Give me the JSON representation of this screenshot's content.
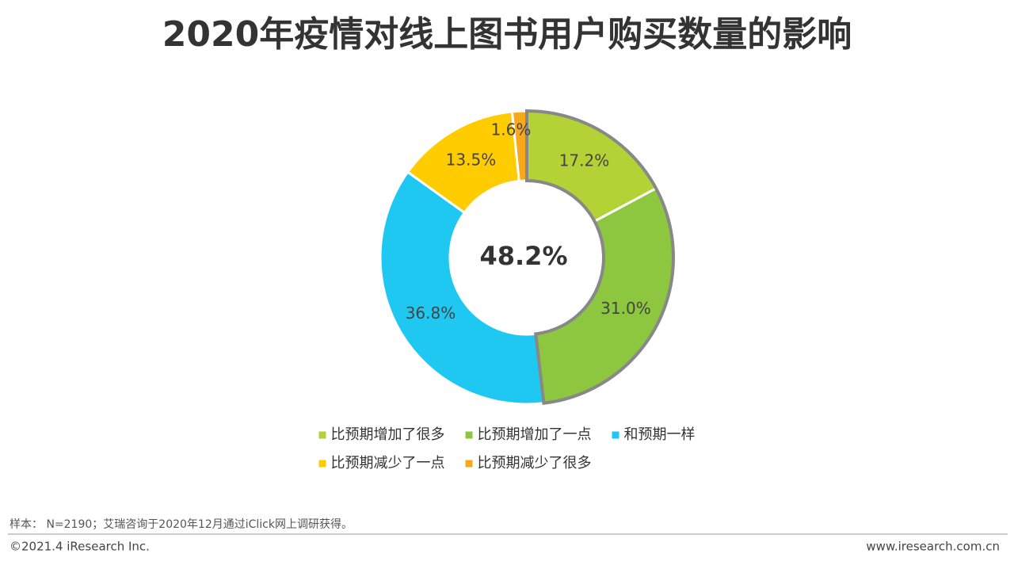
{
  "chart_data": {
    "type": "pie",
    "title": "2020年疫情对线上图书用户购买数量的影响",
    "categories": [
      "比预期增加了很多",
      "比预期增加了一点",
      "和预期一样",
      "比预期减少了一点",
      "比预期减少了很多"
    ],
    "values": [
      17.2,
      31.0,
      36.8,
      13.5,
      1.6
    ],
    "value_labels": [
      "17.2%",
      "31.0%",
      "36.8%",
      "13.5%",
      "1.6%"
    ],
    "colors": [
      "#b2d235",
      "#8dc63f",
      "#1ec8f0",
      "#ffcc00",
      "#f7a81b"
    ],
    "center_label": "48.2%",
    "note": "样本： N=2190；艾瑞咨询于2020年12月通过iClick网上调研获得。",
    "copyright": "©2021.4 iResearch Inc.",
    "website": "www.iresearch.com.cn"
  }
}
